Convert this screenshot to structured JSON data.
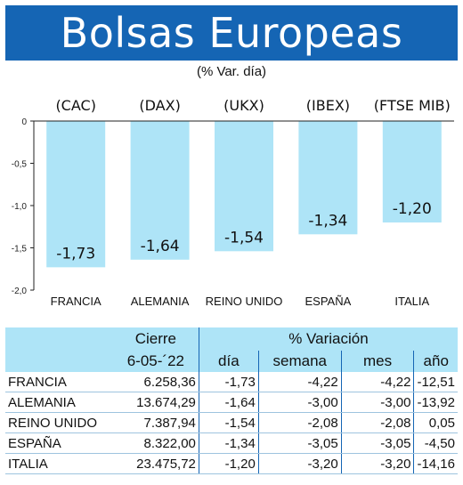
{
  "title": "Bolsas Europeas",
  "subtitle": "(% Var. día)",
  "chart_data": {
    "type": "bar",
    "categories": [
      "FRANCIA",
      "ALEMANIA",
      "REINO UNIDO",
      "ESPAÑA",
      "ITALIA"
    ],
    "index_labels": [
      "(CAC)",
      "(DAX)",
      "(UKX)",
      "(IBEX)",
      "(FTSE MIB)"
    ],
    "values": [
      -1.73,
      -1.64,
      -1.54,
      -1.34,
      -1.2
    ],
    "value_labels": [
      "-1,73",
      "-1,64",
      "-1,54",
      "-1,34",
      "-1,20"
    ],
    "y_ticks": [
      "0",
      "-0,5",
      "-1,0",
      "-1,5",
      "-2,0"
    ],
    "ylim": [
      -2.0,
      0
    ],
    "bar_color": "#aee4f7",
    "grid": false
  },
  "table": {
    "header_cierre": "Cierre",
    "header_variacion": "% Variación",
    "date": "6-05-´22",
    "col_dia": "día",
    "col_semana": "semana",
    "col_mes": "mes",
    "col_anio": "año",
    "rows": [
      {
        "pais": "FRANCIA",
        "cierre": "6.258,36",
        "dia": "-1,73",
        "semana": "-4,22",
        "mes": "-4,22",
        "anio": "-12,51"
      },
      {
        "pais": "ALEMANIA",
        "cierre": "13.674,29",
        "dia": "-1,64",
        "semana": "-3,00",
        "mes": "-3,00",
        "anio": "-13,92"
      },
      {
        "pais": "REINO UNIDO",
        "cierre": "7.387,94",
        "dia": "-1,54",
        "semana": "-2,08",
        "mes": "-2,08",
        "anio": "0,05"
      },
      {
        "pais": "ESPAÑA",
        "cierre": "8.322,00",
        "dia": "-1,34",
        "semana": "-3,05",
        "mes": "-3,05",
        "anio": "-4,50"
      },
      {
        "pais": "ITALIA",
        "cierre": "23.475,72",
        "dia": "-1,20",
        "semana": "-3,20",
        "mes": "-3,20",
        "anio": "-14,16"
      }
    ]
  },
  "colors": {
    "banner": "#1565b4",
    "bar": "#aee4f7",
    "header": "#aee4f7"
  }
}
